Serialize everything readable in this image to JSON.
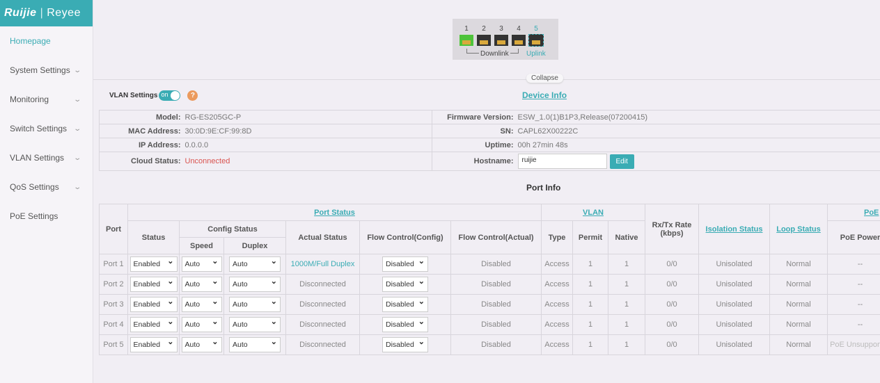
{
  "brand": {
    "logo_left": "Ruijie",
    "logo_right": "Reyee"
  },
  "colors": {
    "accent": "#3aacb4",
    "error": "#d9534f",
    "port_up": "#4ec33a"
  },
  "sidebar": {
    "items": [
      {
        "label": "Homepage",
        "active": true
      },
      {
        "label": "System Settings"
      },
      {
        "label": "Monitoring"
      },
      {
        "label": "Switch Settings"
      },
      {
        "label": "VLAN Settings"
      },
      {
        "label": "QoS Settings"
      },
      {
        "label": "PoE Settings"
      }
    ]
  },
  "ports_panel": {
    "ports": [
      "1",
      "2",
      "3",
      "4",
      "5"
    ],
    "downlink": "Downlink",
    "uplink": "Uplink",
    "port_states": [
      "up",
      "down",
      "down",
      "down",
      "down"
    ]
  },
  "collapse": "Collapse",
  "vlan_settings": {
    "label": "VLAN Settings",
    "toggle": "on",
    "help": "?"
  },
  "device_info": {
    "title": "Device Info",
    "model_label": "Model:",
    "model": "RG-ES205GC-P",
    "mac_label": "MAC Address:",
    "mac": "30:0D:9E:CF:99:8D",
    "ip_label": "IP Address:",
    "ip": "0.0.0.0",
    "cloud_label": "Cloud Status:",
    "cloud": "Unconnected",
    "fw_label": "Firmware Version:",
    "fw": "ESW_1.0(1)B1P3,Release(07200415)",
    "sn_label": "SN:",
    "sn": "CAPL62X00222C",
    "uptime_label": "Uptime:",
    "uptime": "00h 27min 48s",
    "hostname_label": "Hostname:",
    "hostname": "ruijie",
    "edit": "Edit"
  },
  "port_info": {
    "title": "Port Info",
    "headers": {
      "port": "Port",
      "port_status": "Port Status",
      "status": "Status",
      "config_status": "Config Status",
      "speed": "Speed",
      "duplex": "Duplex",
      "actual": "Actual Status",
      "fc_config": "Flow Control(Config)",
      "fc_actual": "Flow Control(Actual)",
      "vlan": "VLAN",
      "type": "Type",
      "permit": "Permit",
      "native": "Native",
      "rate": "Rx/Tx Rate (kbps)",
      "isolation": "Isolation Status",
      "loop": "Loop Status",
      "poe": "PoE",
      "poe_power": "PoE Power"
    },
    "rows": [
      {
        "port": "Port 1",
        "status": "Enabled",
        "speed": "Auto",
        "duplex": "Auto",
        "actual": "1000M/Full Duplex",
        "fc_config": "Disabled",
        "fc_actual": "Disabled",
        "type": "Access",
        "permit": "1",
        "native": "1",
        "rate": "0/0",
        "isolation": "Unisolated",
        "loop": "Normal",
        "poe_power": "--"
      },
      {
        "port": "Port 2",
        "status": "Enabled",
        "speed": "Auto",
        "duplex": "Auto",
        "actual": "Disconnected",
        "fc_config": "Disabled",
        "fc_actual": "Disabled",
        "type": "Access",
        "permit": "1",
        "native": "1",
        "rate": "0/0",
        "isolation": "Unisolated",
        "loop": "Normal",
        "poe_power": "--"
      },
      {
        "port": "Port 3",
        "status": "Enabled",
        "speed": "Auto",
        "duplex": "Auto",
        "actual": "Disconnected",
        "fc_config": "Disabled",
        "fc_actual": "Disabled",
        "type": "Access",
        "permit": "1",
        "native": "1",
        "rate": "0/0",
        "isolation": "Unisolated",
        "loop": "Normal",
        "poe_power": "--"
      },
      {
        "port": "Port 4",
        "status": "Enabled",
        "speed": "Auto",
        "duplex": "Auto",
        "actual": "Disconnected",
        "fc_config": "Disabled",
        "fc_actual": "Disabled",
        "type": "Access",
        "permit": "1",
        "native": "1",
        "rate": "0/0",
        "isolation": "Unisolated",
        "loop": "Normal",
        "poe_power": "--"
      },
      {
        "port": "Port 5",
        "status": "Enabled",
        "speed": "Auto",
        "duplex": "Auto",
        "actual": "Disconnected",
        "fc_config": "Disabled",
        "fc_actual": "Disabled",
        "type": "Access",
        "permit": "1",
        "native": "1",
        "rate": "0/0",
        "isolation": "Unisolated",
        "loop": "Normal",
        "poe_power": "PoE Unsupported"
      }
    ]
  }
}
